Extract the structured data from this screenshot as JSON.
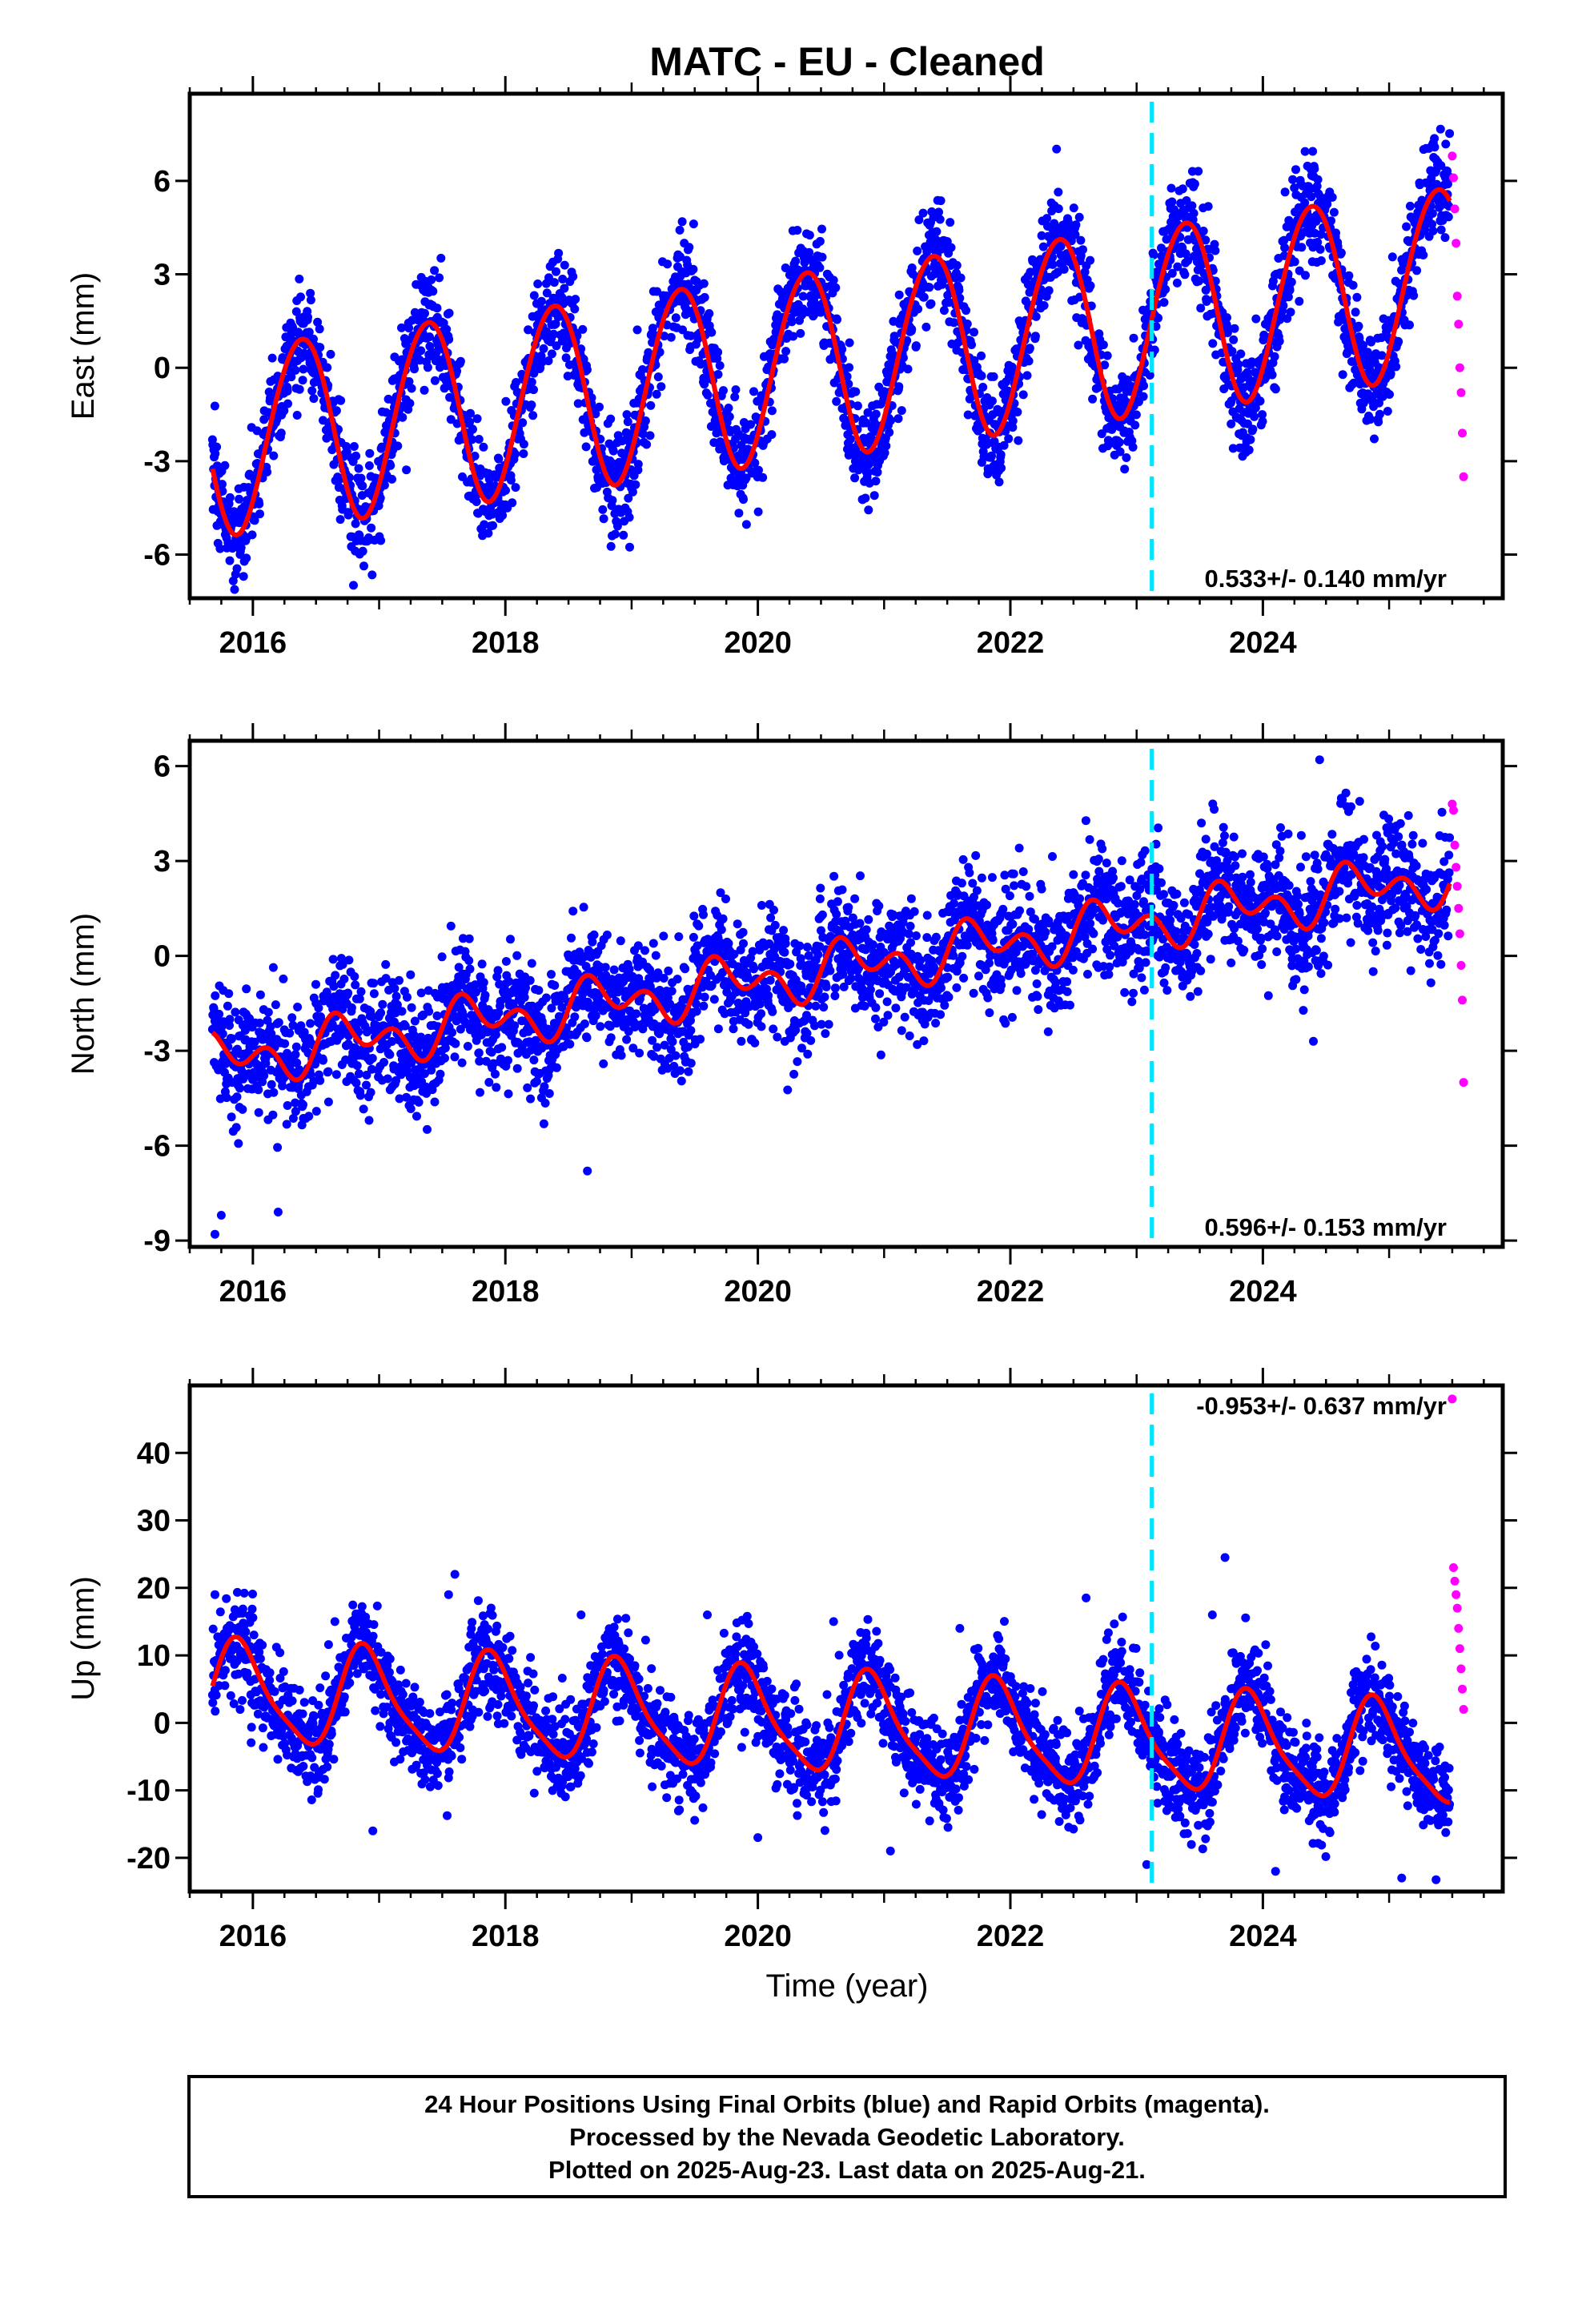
{
  "title": "MATC  - EU - Cleaned",
  "xlabel": "Time (year)",
  "footer": {
    "line1": "24 Hour Positions Using Final Orbits (blue) and Rapid Orbits (magenta).",
    "line2": "Processed by the Nevada Geodetic Laboratory.",
    "line3": "Plotted on 2025-Aug-23. Last data on 2025-Aug-21."
  },
  "colors": {
    "final_points": "#0000ff",
    "rapid_points": "#ff00ff",
    "model_line": "#ff0000",
    "event_line": "#00e5ff",
    "frame": "#000000"
  },
  "chart_data": [
    {
      "type": "scatter",
      "name": "east",
      "ylabel": "East (mm)",
      "xlim": [
        2015.5,
        2025.9
      ],
      "ylim": [
        -7.4,
        8.8
      ],
      "yticks": [
        -6,
        -3,
        0,
        3,
        6
      ],
      "xticks": [
        2016,
        2018,
        2020,
        2022,
        2024
      ],
      "rate_text": "0.533+/- 0.140 mm/yr",
      "event_x": 2023.12,
      "data_range": [
        2015.68,
        2025.48
      ],
      "model": {
        "offset": -2.35,
        "trend": 0.533,
        "annual_amp": 3.0,
        "annual_phase": 2016.13,
        "semi_amp": 0.15,
        "semi_phase": 2015.95
      },
      "noise_sd": 0.85,
      "final_points": [
        [
          2015.75,
          -3.9
        ],
        [
          2016.05,
          -3.1
        ],
        [
          2016.4,
          0.9
        ],
        [
          2016.9,
          -4.6
        ],
        [
          2017.35,
          1.3
        ],
        [
          2017.85,
          -3.9
        ],
        [
          2018.4,
          1.8
        ],
        [
          2018.9,
          -3.5
        ],
        [
          2019.4,
          2.4
        ],
        [
          2019.9,
          -2.9
        ],
        [
          2020.4,
          2.8
        ],
        [
          2020.9,
          -2.4
        ],
        [
          2021.4,
          3.3
        ],
        [
          2021.9,
          -1.9
        ],
        [
          2022.4,
          3.9
        ],
        [
          2022.9,
          -1.3
        ],
        [
          2023.4,
          4.5
        ],
        [
          2023.9,
          -0.6
        ],
        [
          2024.35,
          5.0
        ],
        [
          2024.85,
          -0.1
        ],
        [
          2025.35,
          5.7
        ]
      ],
      "rapid_points": [
        [
          2025.5,
          6.8
        ],
        [
          2025.51,
          6.1
        ],
        [
          2025.52,
          5.1
        ],
        [
          2025.53,
          4.0
        ],
        [
          2025.54,
          2.3
        ],
        [
          2025.55,
          1.4
        ],
        [
          2025.56,
          0.0
        ],
        [
          2025.57,
          -0.8
        ],
        [
          2025.58,
          -2.1
        ],
        [
          2025.59,
          -3.5
        ]
      ]
    },
    {
      "type": "scatter",
      "name": "north",
      "ylabel": "North (mm)",
      "xlim": [
        2015.5,
        2025.9
      ],
      "ylim": [
        -9.2,
        6.8
      ],
      "yticks": [
        -9,
        -6,
        -3,
        0,
        3,
        6
      ],
      "xticks": [
        2016,
        2018,
        2020,
        2022,
        2024
      ],
      "rate_text": "0.596+/- 0.153 mm/yr",
      "event_x": 2023.12,
      "data_range": [
        2015.68,
        2025.48
      ],
      "model": {
        "offset": -3.35,
        "trend": 0.596,
        "annual_amp": 0.55,
        "annual_phase": 2016.5,
        "semi_amp": 0.55,
        "semi_phase": 2016.0
      },
      "noise_sd": 0.95,
      "final_points": [
        [
          2015.7,
          -8.8
        ],
        [
          2015.75,
          -8.2
        ],
        [
          2016.2,
          -8.1
        ],
        [
          2018.65,
          -6.8
        ],
        [
          2016.5,
          -1.5
        ],
        [
          2017.5,
          -1.0
        ],
        [
          2018.5,
          -0.5
        ],
        [
          2019.5,
          0.2
        ],
        [
          2020.5,
          0.8
        ],
        [
          2021.5,
          1.4
        ],
        [
          2022.5,
          2.0
        ],
        [
          2023.5,
          2.6
        ],
        [
          2024.5,
          3.2
        ],
        [
          2024.45,
          6.2
        ],
        [
          2025.4,
          3.8
        ],
        [
          2022.3,
          -2.4
        ],
        [
          2024.4,
          -2.7
        ]
      ],
      "rapid_points": [
        [
          2025.5,
          4.8
        ],
        [
          2025.51,
          4.6
        ],
        [
          2025.52,
          3.5
        ],
        [
          2025.53,
          2.8
        ],
        [
          2025.54,
          2.2
        ],
        [
          2025.55,
          1.5
        ],
        [
          2025.56,
          0.7
        ],
        [
          2025.57,
          -0.3
        ],
        [
          2025.58,
          -1.4
        ],
        [
          2025.59,
          -4.0
        ]
      ]
    },
    {
      "type": "scatter",
      "name": "up",
      "ylabel": "Up (mm)",
      "xlim": [
        2015.5,
        2025.9
      ],
      "ylim": [
        -25,
        50
      ],
      "yticks": [
        -20,
        -10,
        0,
        10,
        20,
        30,
        40
      ],
      "xticks": [
        2016,
        2018,
        2020,
        2022,
        2024
      ],
      "rate_text": "-0.953+/- 0.637 mm/yr",
      "event_x": 2023.12,
      "data_range": [
        2015.68,
        2025.48
      ],
      "model": {
        "offset": 4.5,
        "trend": -0.953,
        "annual_amp": 7.2,
        "annual_phase": 2015.65,
        "semi_amp": 1.6,
        "semi_phase": 2015.7
      },
      "noise_sd": 3.6,
      "final_points": [
        [
          2015.7,
          19.0
        ],
        [
          2016.65,
          15.0
        ],
        [
          2017.6,
          22.0
        ],
        [
          2017.55,
          19.0
        ],
        [
          2018.6,
          16.0
        ],
        [
          2019.6,
          16.0
        ],
        [
          2020.6,
          15.0
        ],
        [
          2021.6,
          14.0
        ],
        [
          2022.6,
          18.5
        ],
        [
          2023.7,
          24.5
        ],
        [
          2023.6,
          16.0
        ],
        [
          2024.1,
          -22.0
        ],
        [
          2025.1,
          -23.0
        ],
        [
          2023.08,
          -21.0
        ],
        [
          2016.95,
          -16.0
        ],
        [
          2020.0,
          -17.0
        ],
        [
          2021.05,
          -19.0
        ]
      ],
      "rapid_points": [
        [
          2025.5,
          48.0
        ],
        [
          2025.51,
          23.0
        ],
        [
          2025.52,
          21.0
        ],
        [
          2025.53,
          19.0
        ],
        [
          2025.54,
          17.0
        ],
        [
          2025.55,
          14.0
        ],
        [
          2025.56,
          11.0
        ],
        [
          2025.57,
          8.0
        ],
        [
          2025.58,
          5.0
        ],
        [
          2025.59,
          2.0
        ]
      ]
    }
  ]
}
